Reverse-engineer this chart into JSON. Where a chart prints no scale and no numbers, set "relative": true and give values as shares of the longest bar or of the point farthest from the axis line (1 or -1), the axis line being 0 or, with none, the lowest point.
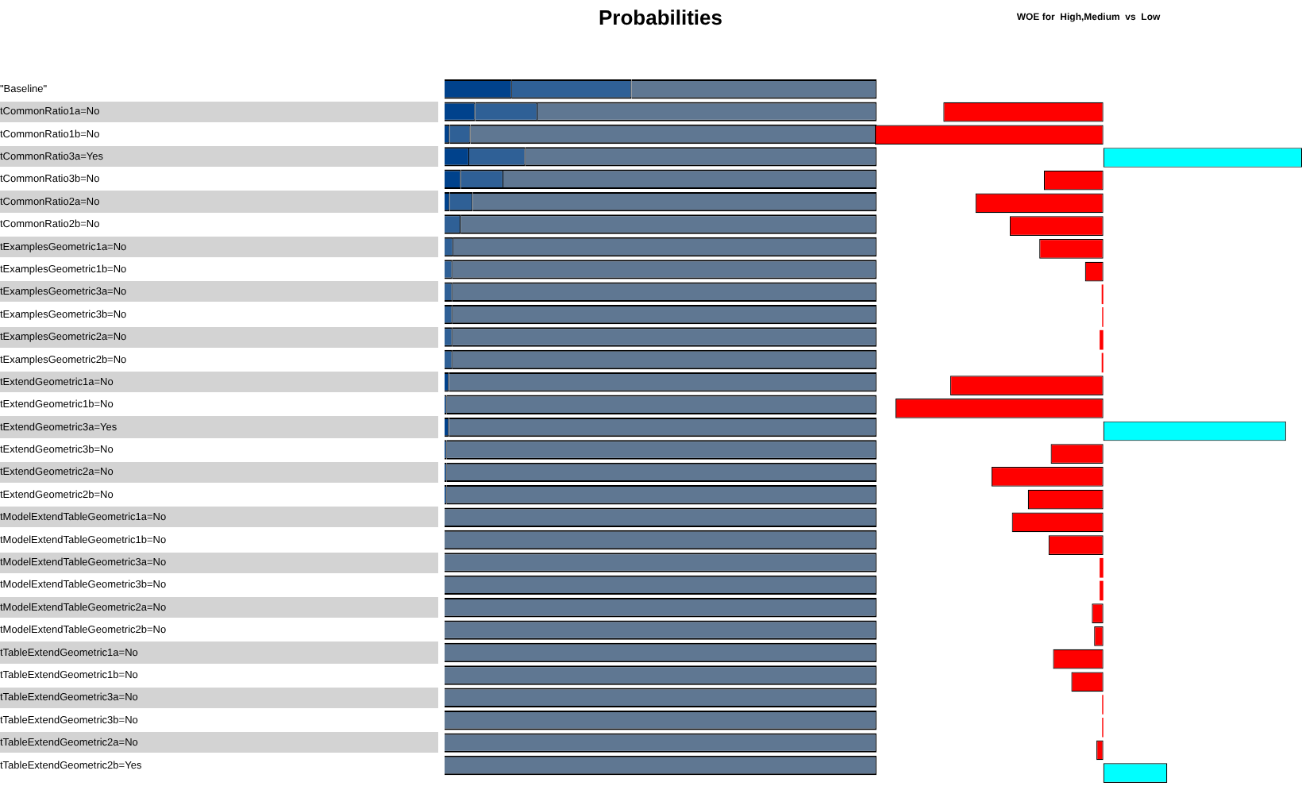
{
  "chart_data": [
    {
      "type": "bar",
      "title": "Probabilities",
      "orientation": "horizontal",
      "stacked": true,
      "relative": true,
      "categories": [
        "\"Baseline\"",
        "tCommonRatio1a=No",
        "tCommonRatio1b=No",
        "tCommonRatio3a=Yes",
        "tCommonRatio3b=No",
        "tCommonRatio2a=No",
        "tCommonRatio2b=No",
        "tExamplesGeometric1a=No",
        "tExamplesGeometric1b=No",
        "tExamplesGeometric3a=No",
        "tExamplesGeometric3b=No",
        "tExamplesGeometric2a=No",
        "tExamplesGeometric2b=No",
        "tExtendGeometric1a=No",
        "tExtendGeometric1b=No",
        "tExtendGeometric3a=Yes",
        "tExtendGeometric3b=No",
        "tExtendGeometric2a=No",
        "tExtendGeometric2b=No",
        "tModelExtendTableGeometric1a=No",
        "tModelExtendTableGeometric1b=No",
        "tModelExtendTableGeometric3a=No",
        "tModelExtendTableGeometric3b=No",
        "tModelExtendTableGeometric2a=No",
        "tModelExtendTableGeometric2b=No",
        "tTableExtendGeometric1a=No",
        "tTableExtendGeometric1b=No",
        "tTableExtendGeometric3a=No",
        "tTableExtendGeometric3b=No",
        "tTableExtendGeometric2a=No",
        "tTableExtendGeometric2b=Yes"
      ],
      "series": [
        {
          "color": "#00428c",
          "values": [
            0.156,
            0.071,
            0.012,
            0.057,
            0.038,
            0.012,
            0,
            0,
            0,
            0,
            0,
            0,
            0,
            0.01,
            0.005,
            0.01,
            0.005,
            0.005,
            0.005,
            0,
            0,
            0,
            0,
            0,
            0,
            0,
            0,
            0,
            0,
            0,
            0
          ]
        },
        {
          "color": "#2f6096",
          "values": [
            0.277,
            0.144,
            0.048,
            0.13,
            0.098,
            0.053,
            0.037,
            0.02,
            0.018,
            0.018,
            0.018,
            0.018,
            0.018,
            0,
            0,
            0,
            0,
            0,
            0,
            0,
            0,
            0,
            0,
            0,
            0,
            0,
            0,
            0,
            0,
            0,
            0
          ]
        },
        {
          "color": "#5f7792",
          "values": [
            0.567,
            0.785,
            0.94,
            0.813,
            0.864,
            0.935,
            0.963,
            0.98,
            0.982,
            0.982,
            0.982,
            0.982,
            0.982,
            0.99,
            0.995,
            0.99,
            0.995,
            0.995,
            0.995,
            1,
            1,
            1,
            1,
            1,
            1,
            1,
            1,
            1,
            1,
            1,
            1
          ]
        }
      ]
    },
    {
      "type": "bar",
      "title": "WOE for  High,Medium  vs  Low",
      "orientation": "horizontal",
      "relative": true,
      "tick_labels": false,
      "categories": [
        null,
        null,
        null,
        null,
        null,
        null,
        null,
        null,
        null,
        null,
        null,
        null,
        null,
        null,
        null,
        null,
        null,
        null,
        null,
        null,
        null,
        null,
        null,
        null,
        null,
        null,
        null,
        null,
        null,
        null,
        null
      ],
      "values": [
        null,
        -0.7,
        -1,
        0.87,
        -0.26,
        -0.56,
        -0.41,
        -0.28,
        -0.08,
        -0.007,
        -0.005,
        -0.016,
        -0.007,
        -0.67,
        -0.91,
        0.8,
        -0.23,
        -0.49,
        -0.33,
        -0.4,
        -0.24,
        -0.016,
        -0.016,
        -0.05,
        -0.04,
        -0.22,
        -0.14,
        -0.005,
        -0.005,
        -0.03,
        0.28
      ],
      "colors": [
        "#ff0000",
        "#ff0000",
        "#ff0000",
        "#00ffff",
        "#ff0000",
        "#ff0000",
        "#ff0000",
        "#ff0000",
        "#ff0000",
        "#ff0000",
        "#ff0000",
        "#ff0000",
        "#ff0000",
        "#ff0000",
        "#ff0000",
        "#00ffff",
        "#ff0000",
        "#ff0000",
        "#ff0000",
        "#ff0000",
        "#ff0000",
        "#ff0000",
        "#ff0000",
        "#ff0000",
        "#ff0000",
        "#ff0000",
        "#ff0000",
        "#ff0000",
        "#ff0000",
        "#ff0000",
        "#00ffff"
      ]
    }
  ]
}
